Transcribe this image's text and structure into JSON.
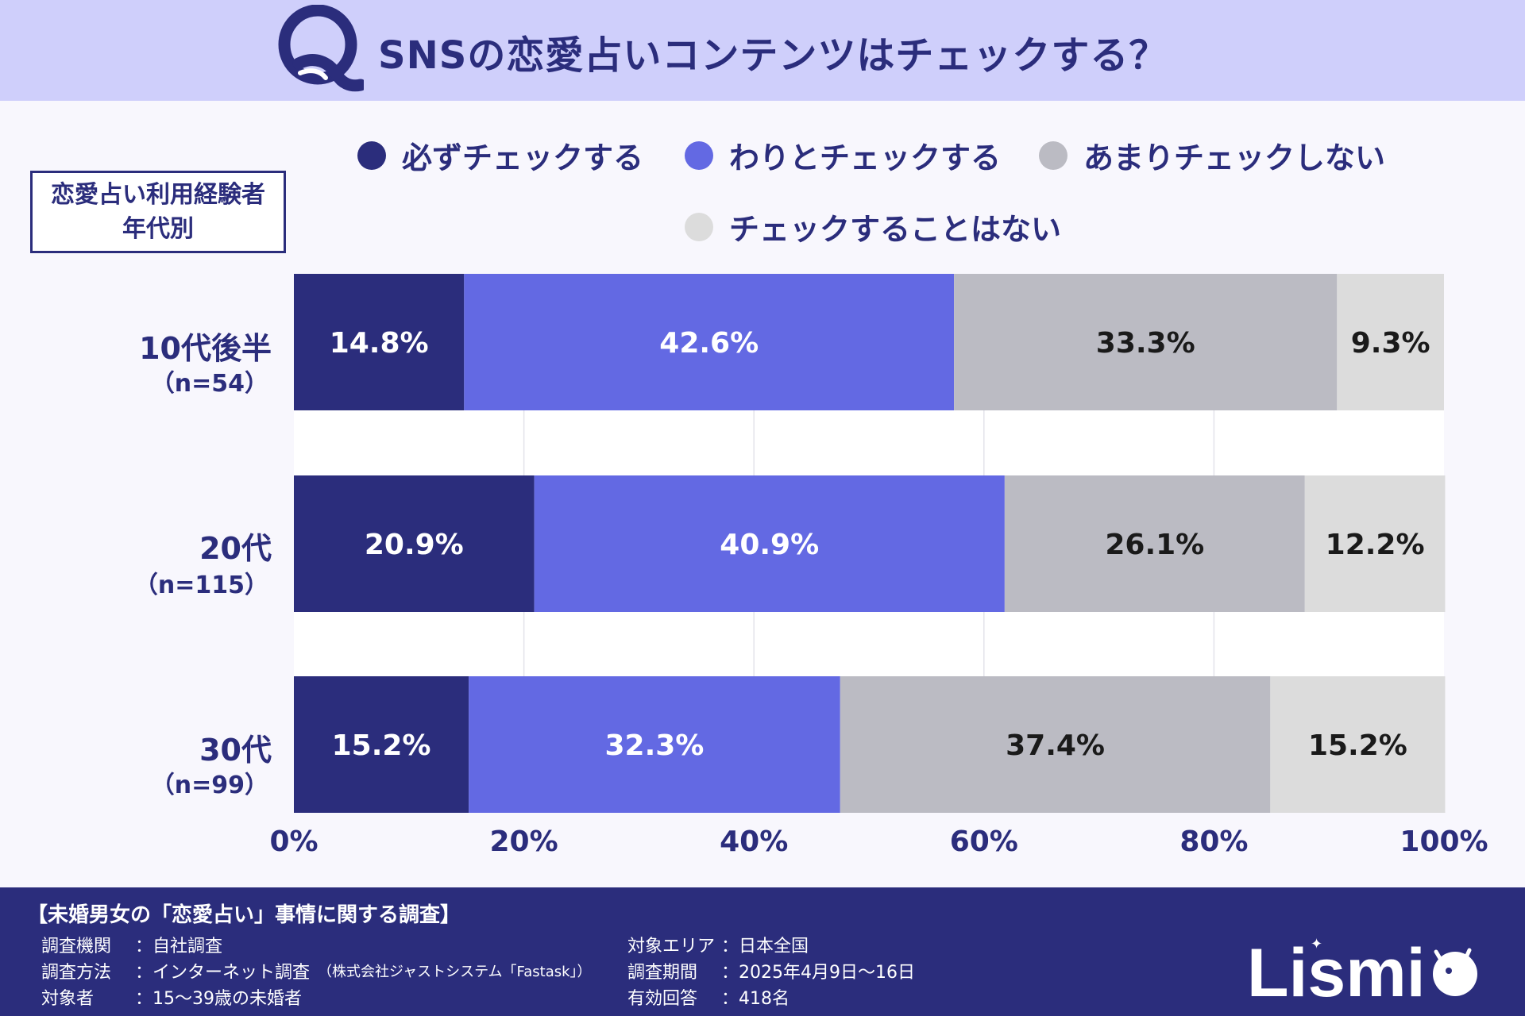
{
  "header": {
    "title": "SNSの恋愛占いコンテンツはチェックする？",
    "q_letter": "Q"
  },
  "group_label": {
    "line1": "恋愛占い利用経験者",
    "line2": "年代別"
  },
  "legend": [
    {
      "label": "必ずチェックする",
      "color": "#2b2d7c"
    },
    {
      "label": "わりとチェックする",
      "color": "#6369e3"
    },
    {
      "label": "あまりチェックしない",
      "color": "#bbbbc3"
    },
    {
      "label": "チェックすることはない",
      "color": "#dcdcdc"
    }
  ],
  "categories": [
    {
      "name": "10代後半",
      "n": "（n=54）"
    },
    {
      "name": "20代",
      "n": "（n=115）"
    },
    {
      "name": "30代",
      "n": "（n=99）"
    }
  ],
  "chart_data": {
    "type": "bar",
    "orientation": "horizontal",
    "stacked": true,
    "title": "SNSの恋愛占いコンテンツはチェックする？",
    "categories": [
      "10代後半",
      "20代",
      "30代"
    ],
    "series": [
      {
        "name": "必ずチェックする",
        "values": [
          14.8,
          20.9,
          15.2
        ],
        "labels": [
          "14.8%",
          "20.9%",
          "15.2%"
        ]
      },
      {
        "name": "わりとチェックする",
        "values": [
          42.6,
          40.9,
          32.3
        ],
        "labels": [
          "42.6%",
          "40.9%",
          "32.3%"
        ]
      },
      {
        "name": "あまりチェックしない",
        "values": [
          33.3,
          26.1,
          37.4
        ],
        "labels": [
          "33.3%",
          "26.1%",
          "37.4%"
        ]
      },
      {
        "name": "チェックすることはない",
        "values": [
          9.3,
          12.2,
          15.2
        ],
        "labels": [
          "9.3%",
          "12.2%",
          "15.2%"
        ]
      }
    ],
    "xlim": [
      0,
      100
    ],
    "xticks": [
      "0%",
      "20%",
      "40%",
      "60%",
      "80%",
      "100%"
    ],
    "label_colors": [
      "#ffffff",
      "#ffffff",
      "#1a1a1a",
      "#1a1a1a"
    ],
    "grid": true,
    "legend_position": "top"
  },
  "footer": {
    "survey_title": "【未婚男女の「恋愛占い」事情に関する調査】",
    "left": [
      {
        "key": "調査機関",
        "value": "：自社調査",
        "note": ""
      },
      {
        "key": "調査方法",
        "value": "：インターネット調査",
        "note": "（株式会社ジャストシステム「Fastask」）"
      },
      {
        "key": "対象者",
        "value": "：15〜39歳の未婚者",
        "note": ""
      }
    ],
    "right": [
      {
        "key": "対象エリア",
        "value": "：日本全国"
      },
      {
        "key": "調査期間",
        "value": "：2025年4月9日〜16日"
      },
      {
        "key": "有効回答",
        "value": "：418名"
      }
    ],
    "brand": "Lismi"
  }
}
